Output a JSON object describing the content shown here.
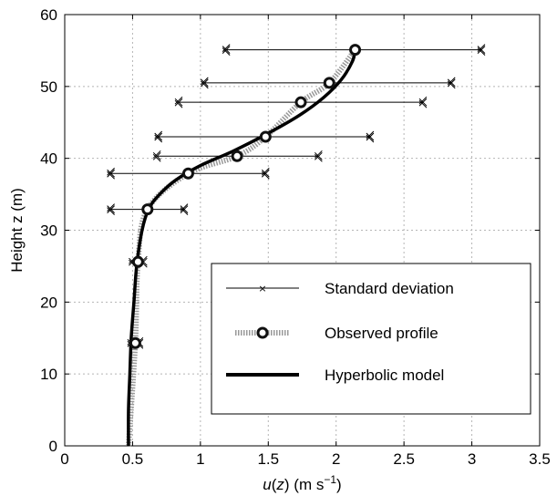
{
  "chart_data": {
    "type": "line",
    "title": "",
    "xlabel": {
      "prefix": "u",
      "mid": "(",
      "var": "z",
      "suffix": ") (m s",
      "exp": "−1",
      "close": ")"
    },
    "ylabel": "Height z (m)",
    "xlim": [
      0,
      3.5
    ],
    "ylim": [
      0,
      60
    ],
    "xticks": [
      "0",
      "0.5",
      "1",
      "1.5",
      "2",
      "2.5",
      "3",
      "3.5"
    ],
    "yticks": [
      "0",
      "10",
      "20",
      "30",
      "40",
      "50",
      "60"
    ],
    "grid": true,
    "legend_position": "bottom-right",
    "series": [
      {
        "name": "Standard deviation",
        "style": "errorbar",
        "color": "#000000",
        "values": [
          {
            "y": 14.3,
            "x_min": 0.49,
            "x_max": 0.55
          },
          {
            "y": 25.6,
            "x_min": 0.5,
            "x_max": 0.58
          },
          {
            "y": 32.9,
            "x_min": 0.34,
            "x_max": 0.88
          },
          {
            "y": 37.9,
            "x_min": 0.34,
            "x_max": 1.48
          },
          {
            "y": 40.3,
            "x_min": 0.68,
            "x_max": 1.87
          },
          {
            "y": 43.0,
            "x_min": 0.69,
            "x_max": 2.25
          },
          {
            "y": 47.8,
            "x_min": 0.84,
            "x_max": 2.64
          },
          {
            "y": 50.5,
            "x_min": 1.03,
            "x_max": 2.85
          },
          {
            "y": 55.1,
            "x_min": 1.19,
            "x_max": 3.07
          }
        ]
      },
      {
        "name": "Observed profile",
        "style": "dotted-markers",
        "color": "#999999",
        "values": [
          {
            "x": 0.47,
            "y": 0.0
          },
          {
            "x": 0.52,
            "y": 14.3
          },
          {
            "x": 0.54,
            "y": 25.6
          },
          {
            "x": 0.61,
            "y": 32.9
          },
          {
            "x": 0.91,
            "y": 37.9
          },
          {
            "x": 1.27,
            "y": 40.3
          },
          {
            "x": 1.48,
            "y": 43.0
          },
          {
            "x": 1.74,
            "y": 47.8
          },
          {
            "x": 1.95,
            "y": 50.5
          },
          {
            "x": 2.14,
            "y": 55.1
          }
        ],
        "markers_at": [
          1,
          2,
          3,
          4,
          5,
          6,
          7,
          8,
          9
        ]
      },
      {
        "name": "Hyperbolic model",
        "style": "thick-line",
        "color": "#000000",
        "values": [
          {
            "x": 0.47,
            "y": 0
          },
          {
            "x": 0.47,
            "y": 5
          },
          {
            "x": 0.48,
            "y": 10
          },
          {
            "x": 0.49,
            "y": 15
          },
          {
            "x": 0.51,
            "y": 20
          },
          {
            "x": 0.53,
            "y": 25
          },
          {
            "x": 0.57,
            "y": 30
          },
          {
            "x": 0.62,
            "y": 33
          },
          {
            "x": 0.7,
            "y": 35
          },
          {
            "x": 0.82,
            "y": 37
          },
          {
            "x": 1.0,
            "y": 39
          },
          {
            "x": 1.24,
            "y": 41
          },
          {
            "x": 1.5,
            "y": 43.5
          },
          {
            "x": 1.73,
            "y": 46
          },
          {
            "x": 1.91,
            "y": 48.5
          },
          {
            "x": 2.04,
            "y": 51
          },
          {
            "x": 2.12,
            "y": 53.5
          },
          {
            "x": 2.14,
            "y": 55
          }
        ]
      }
    ]
  }
}
